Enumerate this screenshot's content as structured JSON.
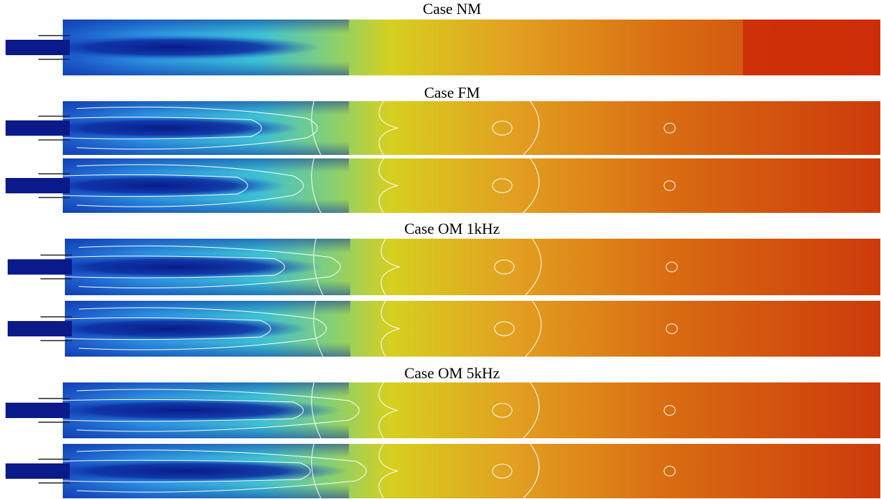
{
  "titles": [
    "Case NM",
    "Case FM",
    "Case OM 1kHz",
    "Case OM 5kHz"
  ]
}
